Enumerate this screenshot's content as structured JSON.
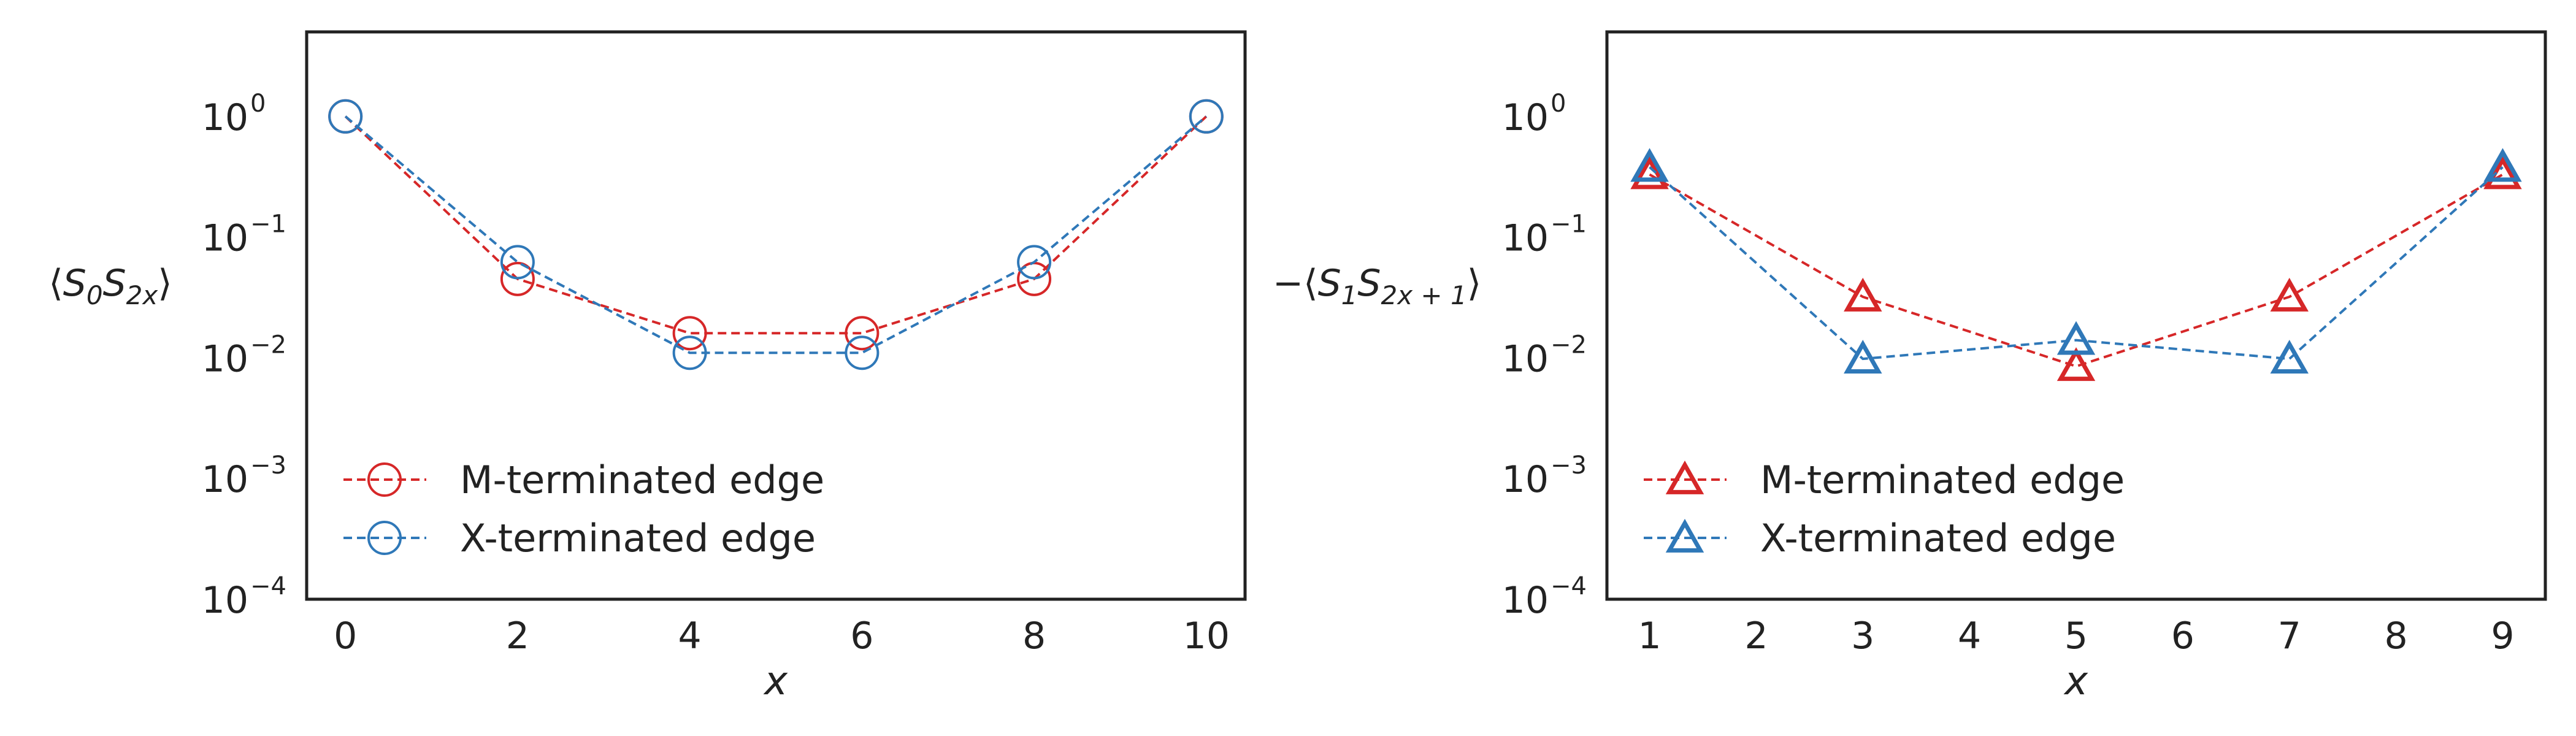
{
  "chart_data": [
    {
      "type": "line",
      "marker": "circle",
      "xlabel": "x",
      "ylabel": {
        "open": "⟨",
        "s1": "S",
        "s1_sub": "0",
        "s2": "S",
        "s2_sub": "2x",
        "close": "⟩"
      },
      "xticks": [
        0,
        2,
        4,
        6,
        8,
        10
      ],
      "xlim": [
        -0.45,
        10.45
      ],
      "ylog": true,
      "ylim_exp": [
        -4,
        0.7
      ],
      "yticks": [
        {
          "base": "10",
          "exp": "0",
          "value_exp": 0
        },
        {
          "base": "10",
          "exp": "−1",
          "value_exp": -1
        },
        {
          "base": "10",
          "exp": "−2",
          "value_exp": -2
        },
        {
          "base": "10",
          "exp": "−3",
          "value_exp": -3
        },
        {
          "base": "10",
          "exp": "−4",
          "value_exp": -4
        }
      ],
      "grid": false,
      "legend_position": "lower-left",
      "series": [
        {
          "name": "M-terminated edge",
          "color": "#d62728",
          "x": [
            0,
            2,
            4,
            6,
            8,
            10
          ],
          "y": [
            1.0,
            0.045,
            0.016,
            0.016,
            0.045,
            1.0
          ]
        },
        {
          "name": "X-terminated edge",
          "color": "#2f78b8",
          "x": [
            0,
            2,
            4,
            6,
            8,
            10
          ],
          "y": [
            1.0,
            0.062,
            0.011,
            0.011,
            0.062,
            1.0
          ]
        }
      ]
    },
    {
      "type": "line",
      "marker": "triangle",
      "xlabel": "x",
      "ylabel": {
        "open": "−⟨",
        "s1": "S",
        "s1_sub": "1",
        "s2": "S",
        "s2_sub": "2x + 1",
        "close": "⟩"
      },
      "xticks": [
        1,
        2,
        3,
        4,
        5,
        6,
        7,
        8,
        9
      ],
      "xlim": [
        0.6,
        9.4
      ],
      "ylog": true,
      "ylim_exp": [
        -4,
        0.7
      ],
      "yticks": [
        {
          "base": "10",
          "exp": "0",
          "value_exp": 0
        },
        {
          "base": "10",
          "exp": "−1",
          "value_exp": -1
        },
        {
          "base": "10",
          "exp": "−2",
          "value_exp": -2
        },
        {
          "base": "10",
          "exp": "−3",
          "value_exp": -3
        },
        {
          "base": "10",
          "exp": "−4",
          "value_exp": -4
        }
      ],
      "grid": false,
      "legend_position": "lower-left",
      "series": [
        {
          "name": "M-terminated edge",
          "color": "#d62728",
          "x": [
            1,
            3,
            5,
            7,
            9
          ],
          "y": [
            0.33,
            0.032,
            0.0085,
            0.032,
            0.33
          ]
        },
        {
          "name": "X-terminated edge",
          "color": "#2f78b8",
          "x": [
            1,
            3,
            5,
            7,
            9
          ],
          "y": [
            0.38,
            0.0098,
            0.014,
            0.0098,
            0.38
          ]
        }
      ]
    }
  ]
}
